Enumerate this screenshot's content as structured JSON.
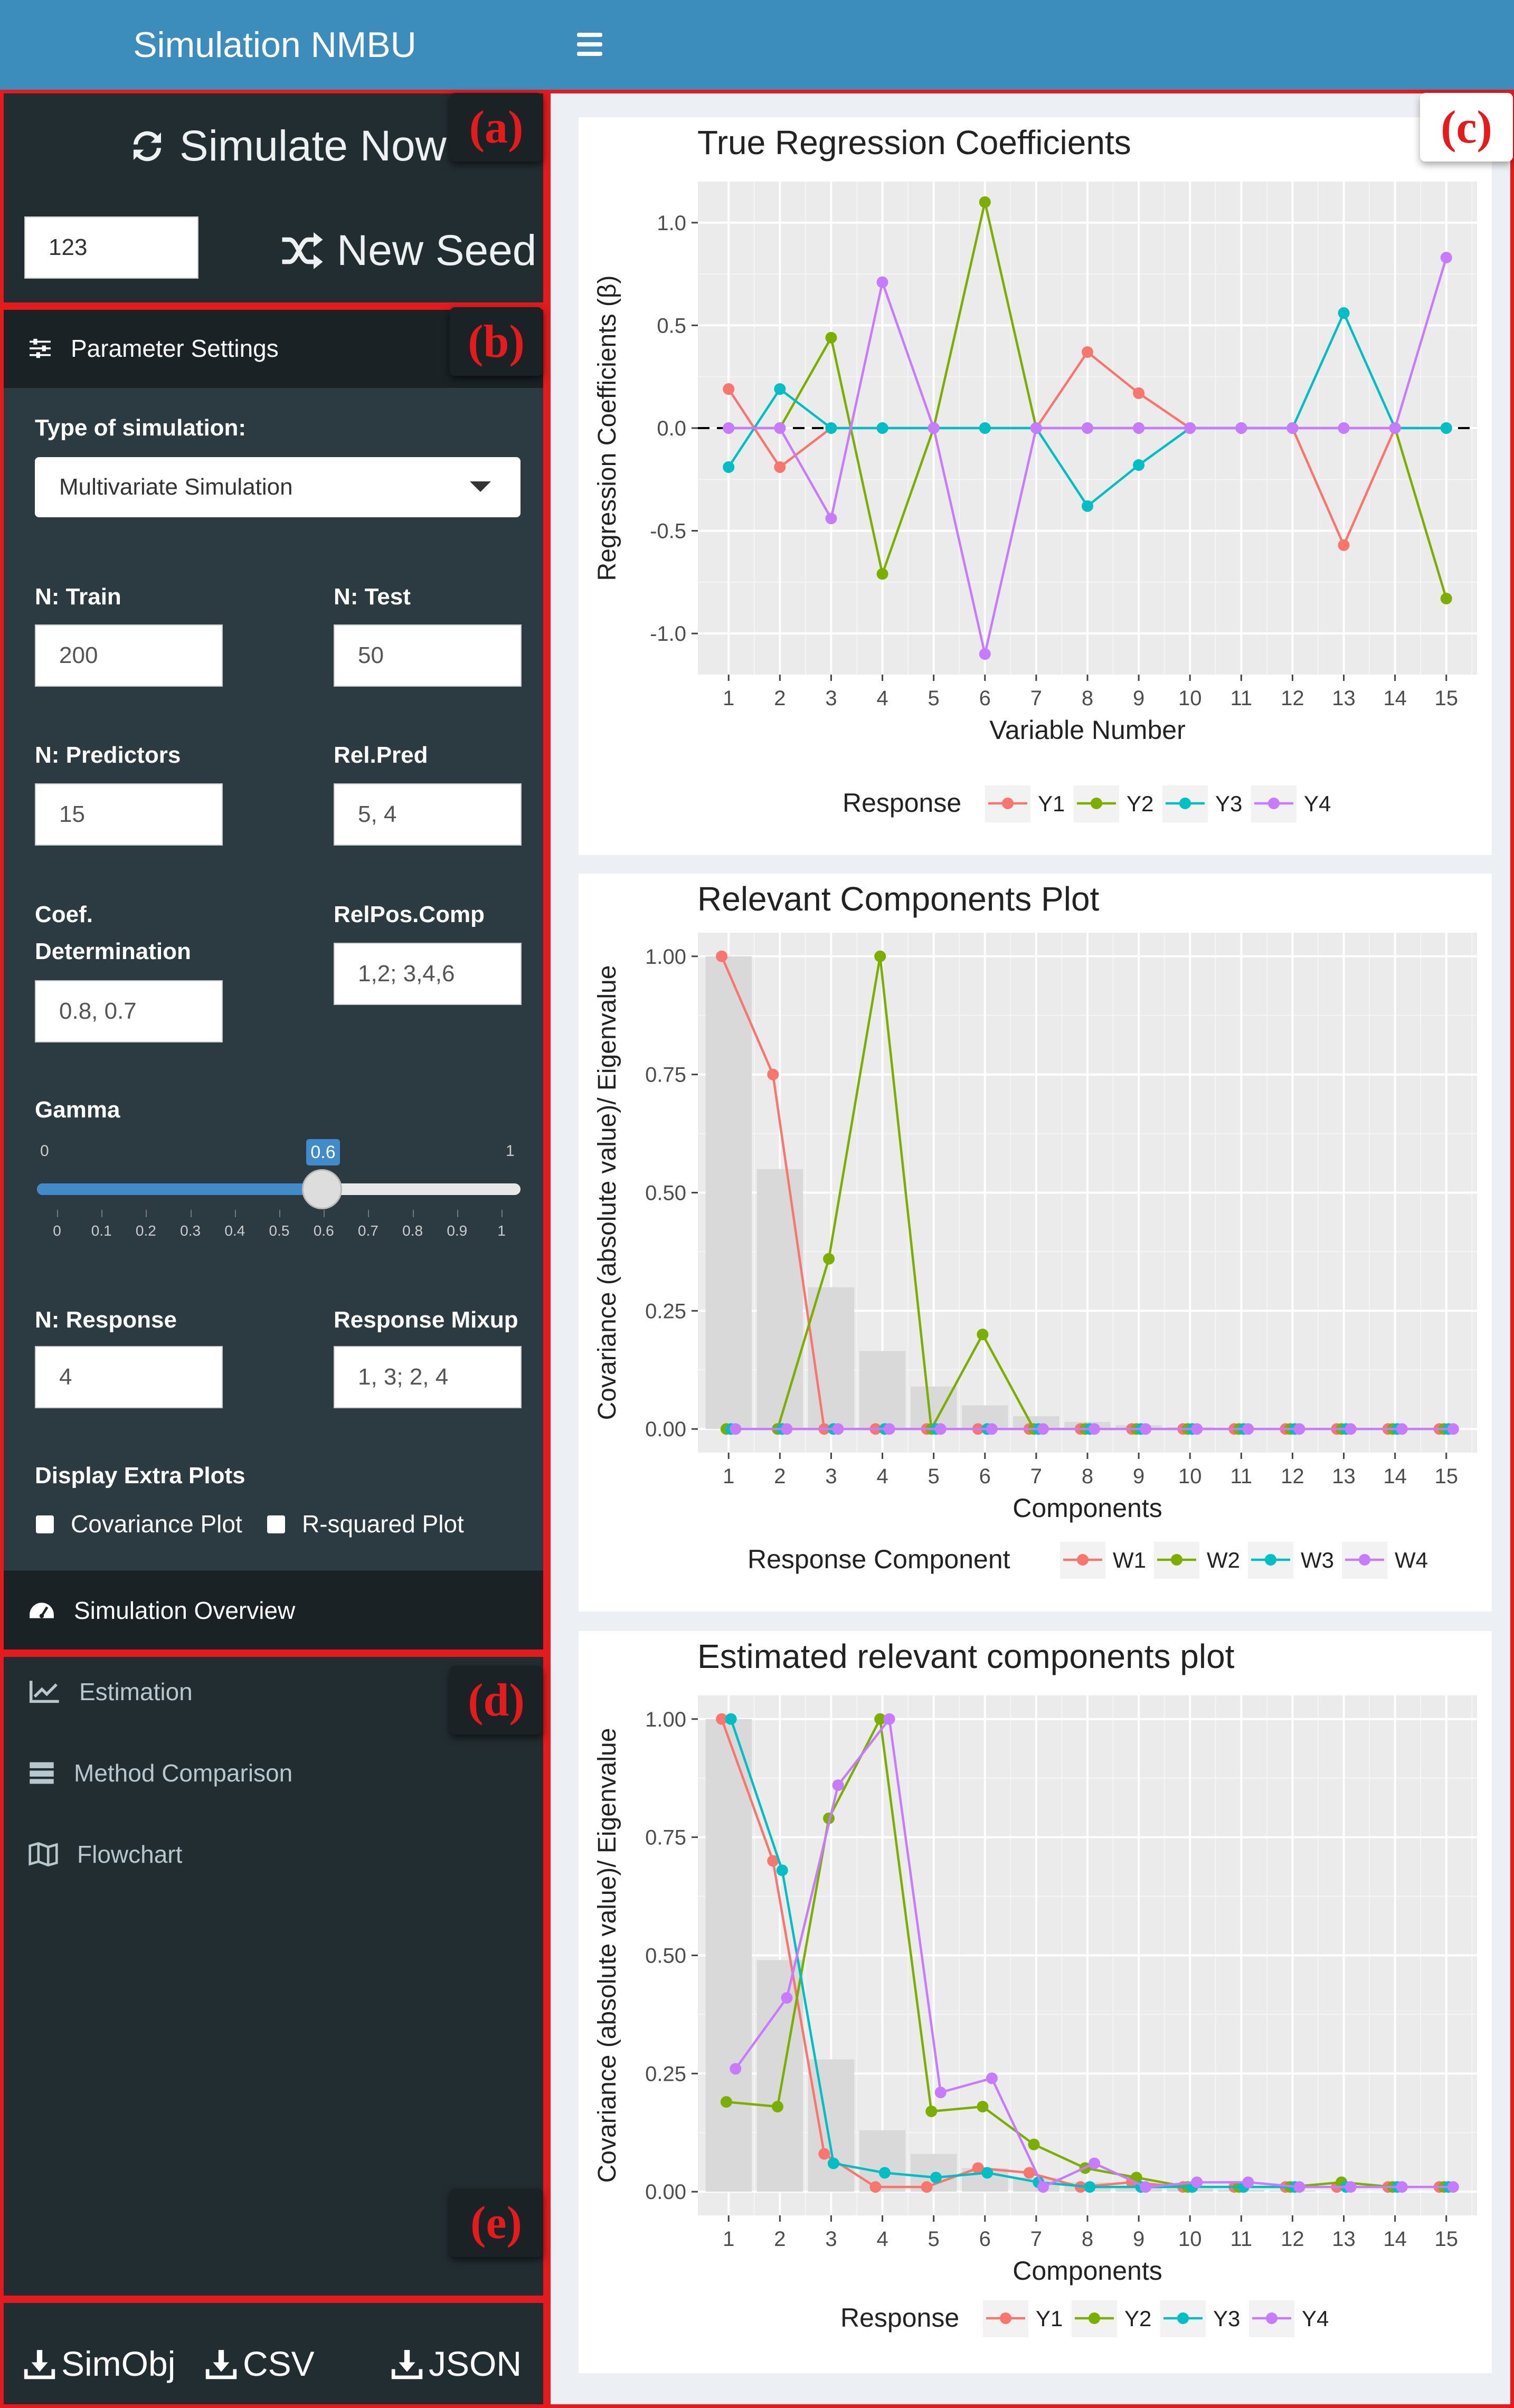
{
  "header": {
    "brand": "Simulation NMBU"
  },
  "top_controls": {
    "simulate_now": "Simulate Now",
    "seed_value": "123",
    "new_seed": "New Seed"
  },
  "annotations": [
    "(a)",
    "(b)",
    "(c)",
    "(d)",
    "(e)"
  ],
  "parameter_settings": {
    "title": "Parameter Settings",
    "type_label": "Type of simulation:",
    "type_value": "Multivariate Simulation",
    "n_train_label": "N: Train",
    "n_train": "200",
    "n_test_label": "N: Test",
    "n_test": "50",
    "n_predictors_label": "N: Predictors",
    "n_predictors": "15",
    "relpred_label": "Rel.Pred",
    "relpred": "5, 4",
    "coef_label_1": "Coef.",
    "coef_label_2": "Determination",
    "coef": "0.8, 0.7",
    "relpos_label": "RelPos.Comp",
    "relpos": "1,2; 3,4,6",
    "gamma_label": "Gamma",
    "gamma_min": "0",
    "gamma_max": "1",
    "gamma_value": "0.6",
    "gamma_ticks": [
      "0",
      "0.1",
      "0.2",
      "0.3",
      "0.4",
      "0.5",
      "0.6",
      "0.7",
      "0.8",
      "0.9",
      "1"
    ],
    "n_response_label": "N: Response",
    "n_response": "4",
    "mixup_label": "Response Mixup",
    "mixup": "1, 3; 2, 4",
    "extra_label": "Display Extra Plots",
    "covariance_plot": "Covariance Plot",
    "rsquared_plot": "R-squared Plot"
  },
  "sidebar_menu": {
    "overview": "Simulation Overview",
    "estimation": "Estimation",
    "method_comparison": "Method Comparison",
    "flowchart": "Flowchart"
  },
  "downloads": {
    "simobj": "SimObj",
    "csv": "CSV",
    "json": "JSON"
  },
  "colors": {
    "Y1": "#F8766D",
    "Y2": "#7CAE00",
    "Y3": "#00BFC4",
    "Y4": "#C77CFF",
    "bar": "#d9d9d9",
    "panel": "#ebebeb"
  },
  "chart_data": [
    {
      "type": "line",
      "title": "True Regression Coefficients",
      "xlabel": "Variable Number",
      "ylabel": "Regression Coefficients (β)",
      "x": [
        1,
        2,
        3,
        4,
        5,
        6,
        7,
        8,
        9,
        10,
        11,
        12,
        13,
        14,
        15
      ],
      "ylim": [
        -1.2,
        1.2
      ],
      "yticks": [
        "-1.0",
        "-0.5",
        "0.0",
        "0.5",
        "1.0"
      ],
      "legend_title": "Response",
      "legend_position": "bottom",
      "series": [
        {
          "name": "Y1",
          "values": [
            0.19,
            -0.19,
            0,
            0,
            0,
            0,
            0,
            0.37,
            0.17,
            0,
            0,
            0,
            -0.57,
            0,
            0
          ]
        },
        {
          "name": "Y2",
          "values": [
            0,
            0,
            0.44,
            -0.71,
            0,
            1.1,
            0,
            0,
            0,
            0,
            0,
            0,
            0,
            0,
            -0.83
          ]
        },
        {
          "name": "Y3",
          "values": [
            -0.19,
            0.19,
            0,
            0,
            0,
            0,
            0,
            -0.38,
            -0.18,
            0,
            0,
            0,
            0.56,
            0,
            0
          ]
        },
        {
          "name": "Y4",
          "values": [
            0,
            0,
            -0.44,
            0.71,
            0,
            -1.1,
            0,
            0,
            0,
            0,
            0,
            0,
            0,
            0,
            0.83
          ]
        }
      ]
    },
    {
      "type": "line",
      "title": "Relevant Components Plot",
      "xlabel": "Components",
      "ylabel": "Covariance (absolute value)/ Eigenvalue",
      "x": [
        1,
        2,
        3,
        4,
        5,
        6,
        7,
        8,
        9,
        10,
        11,
        12,
        13,
        14,
        15
      ],
      "ylim": [
        -0.05,
        1.05
      ],
      "yticks": [
        "0.00",
        "0.25",
        "0.50",
        "0.75",
        "1.00"
      ],
      "bars": [
        1.0,
        0.55,
        0.3,
        0.165,
        0.09,
        0.05,
        0.027,
        0.015,
        0.008,
        0.004,
        0.002,
        0.001,
        0.0006,
        0.0003,
        0.0002
      ],
      "legend_title": "Response Component",
      "legend_position": "bottom",
      "series": [
        {
          "name": "W1",
          "values": [
            1.0,
            0.75,
            0,
            0,
            0,
            0,
            0,
            0,
            0,
            0,
            0,
            0,
            0,
            0,
            0
          ]
        },
        {
          "name": "W2",
          "values": [
            0,
            0,
            0.36,
            1.0,
            0,
            0.2,
            0,
            0,
            0,
            0,
            0,
            0,
            0,
            0,
            0
          ]
        },
        {
          "name": "W3",
          "values": [
            0,
            0,
            0,
            0,
            0,
            0,
            0,
            0,
            0,
            0,
            0,
            0,
            0,
            0,
            0
          ]
        },
        {
          "name": "W4",
          "values": [
            0,
            0,
            0,
            0,
            0,
            0,
            0,
            0,
            0,
            0,
            0,
            0,
            0,
            0,
            0
          ]
        }
      ]
    },
    {
      "type": "line",
      "title": "Estimated relevant components plot",
      "xlabel": "Components",
      "ylabel": "Covariance (absolute value)/ Eigenvalue",
      "x": [
        1,
        2,
        3,
        4,
        5,
        6,
        7,
        8,
        9,
        10,
        11,
        12,
        13,
        14,
        15
      ],
      "ylim": [
        -0.05,
        1.05
      ],
      "yticks": [
        "0.00",
        "0.25",
        "0.50",
        "0.75",
        "1.00"
      ],
      "bars": [
        1.0,
        0.49,
        0.28,
        0.13,
        0.08,
        0.05,
        0.03,
        0.02,
        0.01,
        0.006,
        0.004,
        0.002,
        0.001,
        0.0007,
        0.0004
      ],
      "legend_title": "Response",
      "legend_position": "bottom",
      "series": [
        {
          "name": "Y1",
          "values": [
            1.0,
            0.7,
            0.08,
            0.01,
            0.01,
            0.05,
            0.04,
            0.01,
            0.02,
            0.01,
            0.01,
            0.01,
            0.01,
            0.01,
            0.01
          ]
        },
        {
          "name": "Y2",
          "values": [
            0.19,
            0.18,
            0.79,
            1.0,
            0.17,
            0.18,
            0.1,
            0.05,
            0.03,
            0.01,
            0.01,
            0.01,
            0.02,
            0.01,
            0.01
          ]
        },
        {
          "name": "Y3",
          "values": [
            1.0,
            0.68,
            0.06,
            0.04,
            0.03,
            0.04,
            0.02,
            0.01,
            0.01,
            0.01,
            0.01,
            0.01,
            0.01,
            0.01,
            0.01
          ]
        },
        {
          "name": "Y4",
          "values": [
            0.26,
            0.41,
            0.86,
            1.0,
            0.21,
            0.24,
            0.01,
            0.06,
            0.01,
            0.02,
            0.02,
            0.01,
            0.01,
            0.01,
            0.01
          ]
        }
      ]
    }
  ]
}
